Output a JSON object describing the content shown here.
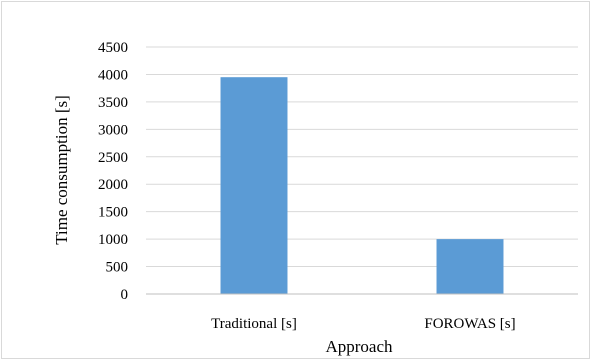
{
  "chart_data": {
    "type": "bar",
    "categories": [
      "Traditional [s]",
      "FOROWAS [s]"
    ],
    "values": [
      3950,
      1000
    ],
    "title": "",
    "xlabel": "Approach",
    "ylabel": "Time consumption [s]",
    "ylim": [
      0,
      4500
    ],
    "yticks": [
      0,
      500,
      1000,
      1500,
      2000,
      2500,
      3000,
      3500,
      4000,
      4500
    ],
    "grid": true,
    "legend": "none",
    "colors": {
      "bar": "#5b9bd5",
      "grid": "#d9d9d9",
      "axis": "#bfbfbf"
    }
  }
}
